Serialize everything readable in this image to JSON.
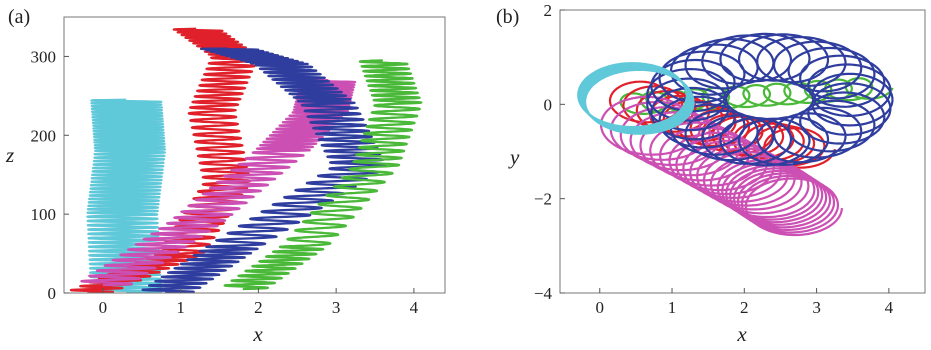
{
  "chart_data": [
    {
      "type": "line",
      "panel_label": "(a)",
      "xlabel": "x",
      "ylabel": "z",
      "xlim": [
        -0.5,
        4.4
      ],
      "ylim": [
        0,
        350
      ],
      "xticks": [
        0,
        1,
        2,
        3,
        4
      ],
      "yticks": [
        0,
        100,
        200,
        300
      ],
      "grid": false,
      "series": [
        {
          "color": "#5fc8d9",
          "path": [
            [
              0.3,
              0
            ],
            [
              0.25,
              100
            ],
            [
              0.35,
              180
            ],
            [
              0.3,
              245
            ]
          ],
          "amplitude": 0.45,
          "wiggles": 55
        },
        {
          "color": "#e0202a",
          "path": [
            [
              -0.2,
              0
            ],
            [
              1.0,
              50
            ],
            [
              1.6,
              140
            ],
            [
              1.4,
              230
            ],
            [
              1.7,
              300
            ],
            [
              1.2,
              335
            ]
          ],
          "amplitude": 0.3,
          "wiggles": 50
        },
        {
          "color": "#cc4fb4",
          "path": [
            [
              0.0,
              10
            ],
            [
              1.2,
              90
            ],
            [
              2.3,
              180
            ],
            [
              2.8,
              230
            ],
            [
              2.9,
              270
            ]
          ],
          "amplitude": 0.35,
          "wiggles": 48
        },
        {
          "color": "#2e3d9e",
          "path": [
            [
              0.8,
              0
            ],
            [
              1.7,
              60
            ],
            [
              3.3,
              160
            ],
            [
              2.9,
              240
            ],
            [
              2.3,
              290
            ],
            [
              1.6,
              310
            ]
          ],
          "amplitude": 0.35,
          "wiggles": 55
        },
        {
          "color": "#4ab838",
          "path": [
            [
              1.8,
              5
            ],
            [
              2.6,
              60
            ],
            [
              3.5,
              160
            ],
            [
              3.8,
              240
            ],
            [
              3.6,
              295
            ]
          ],
          "amplitude": 0.3,
          "wiggles": 36
        }
      ]
    },
    {
      "type": "line",
      "panel_label": "(b)",
      "xlabel": "x",
      "ylabel": "y",
      "xlim": [
        -0.55,
        4.5
      ],
      "ylim": [
        -4,
        2
      ],
      "xticks": [
        0,
        1,
        2,
        3,
        4
      ],
      "yticks": [
        -4,
        -2,
        0,
        2
      ],
      "grid": false,
      "series": [
        {
          "color": "#4ab838",
          "center_path": [
            [
              0.4,
              0.0
            ],
            [
              3.8,
              0.35
            ]
          ],
          "radius": 0.25,
          "loops": 12
        },
        {
          "color": "#e0202a",
          "center_path": [
            [
              0.5,
              0.1
            ],
            [
              1.8,
              -0.6
            ],
            [
              2.8,
              -0.95
            ]
          ],
          "radius": 0.45,
          "loops": 14
        },
        {
          "color": "#cc4fb4",
          "center_path": [
            [
              0.6,
              -0.4
            ],
            [
              1.6,
              -1.2
            ],
            [
              2.3,
              -1.8
            ],
            [
              2.7,
              -2.2
            ]
          ],
          "radius": 0.65,
          "loops": 22
        },
        {
          "color": "#2e3d9e",
          "center_type": "ring",
          "ring_center": [
            2.35,
            0.1
          ],
          "ring_radii": [
            1.15,
            0.9
          ],
          "radius": 0.55,
          "loops": 28
        },
        {
          "color": "#5fc8d9",
          "center_path": [
            [
              0.45,
              0.2
            ],
            [
              0.55,
              0.05
            ]
          ],
          "radius": 0.75,
          "loops": 18
        }
      ]
    }
  ]
}
